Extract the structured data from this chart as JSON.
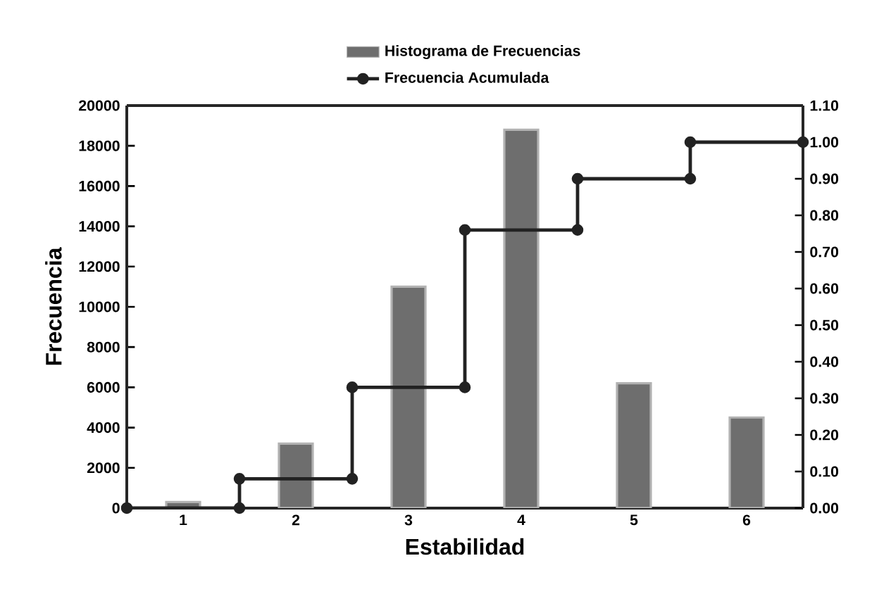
{
  "chart_data": {
    "type": "bar",
    "xlabel": "Estabilidad",
    "ylabel": "Frecuencia",
    "x": [
      1,
      2,
      3,
      4,
      5,
      6
    ],
    "xlim": [
      0.5,
      6.5
    ],
    "xticks": [
      1,
      2,
      3,
      4,
      5,
      6
    ],
    "ylim": [
      0,
      20000
    ],
    "yticks": [
      0,
      2000,
      4000,
      6000,
      8000,
      10000,
      12000,
      14000,
      16000,
      18000,
      20000
    ],
    "y2lim": [
      0,
      1.1
    ],
    "y2ticks": [
      {
        "value": 0,
        "label": "0.00"
      },
      {
        "value": 0.1,
        "label": "0.10"
      },
      {
        "value": 0.2,
        "label": "0.20"
      },
      {
        "value": 0.3,
        "label": "0.30"
      },
      {
        "value": 0.4,
        "label": "0.40"
      },
      {
        "value": 0.5,
        "label": "0.50"
      },
      {
        "value": 0.6,
        "label": "0.60"
      },
      {
        "value": 0.7,
        "label": "0.70"
      },
      {
        "value": 0.8,
        "label": "0.80"
      },
      {
        "value": 0.9,
        "label": "0.90"
      },
      {
        "value": 1.0,
        "label": "1.00"
      },
      {
        "value": 1.1,
        "label": "1.10"
      }
    ],
    "legend": "top",
    "series": [
      {
        "name": "Histograma de Frecuencias",
        "color": "#6e6e6e",
        "values": [
          300,
          3200,
          11000,
          18800,
          6200,
          4500
        ]
      },
      {
        "name": "Frecuencia Acumulada",
        "type": "line",
        "axis": "y2",
        "color": "#222222",
        "marker": "circle",
        "line_style": "solid",
        "x": [
          0.5,
          1.5,
          1.5,
          2.5,
          2.5,
          3.5,
          3.5,
          4.5,
          4.5,
          5.5,
          5.5,
          6.5
        ],
        "values": [
          0,
          0,
          0.08,
          0.08,
          0.33,
          0.33,
          0.76,
          0.76,
          0.9,
          0.9,
          1.0,
          1.0
        ]
      }
    ]
  }
}
